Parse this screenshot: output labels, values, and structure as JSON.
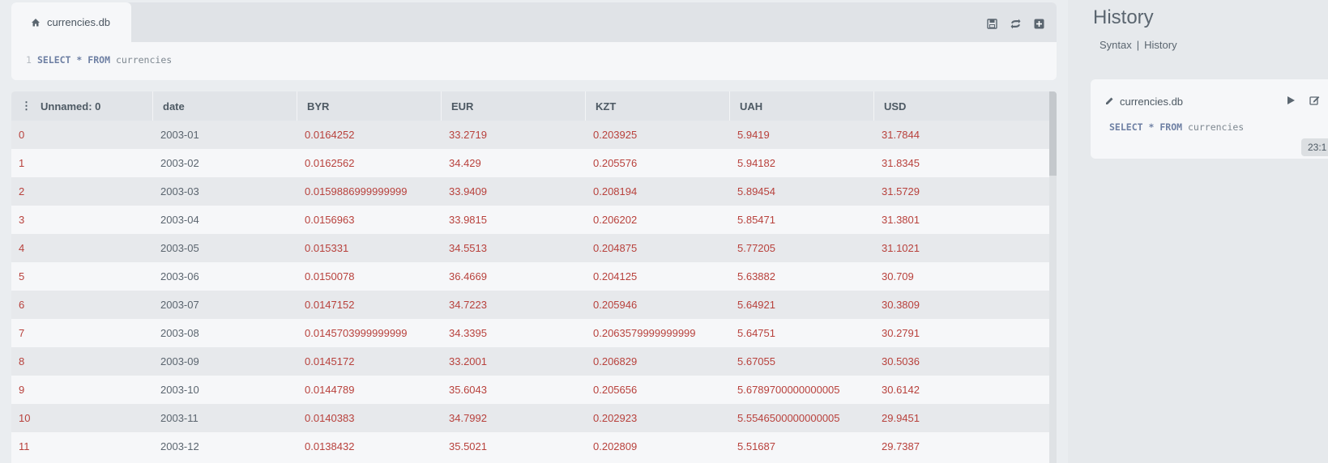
{
  "editor": {
    "tab_label": "currencies.db",
    "line_number": "1",
    "query": {
      "kw1": "SELECT",
      "star": "*",
      "kw2": "FROM",
      "table": "currencies"
    },
    "actions": [
      "save-icon",
      "refresh-icon",
      "add-icon"
    ]
  },
  "table": {
    "columns": [
      "Unnamed: 0",
      "date",
      "BYR",
      "EUR",
      "KZT",
      "UAH",
      "USD"
    ],
    "rows": [
      [
        "0",
        "2003-01",
        "0.0164252",
        "33.2719",
        "0.203925",
        "5.9419",
        "31.7844"
      ],
      [
        "1",
        "2003-02",
        "0.0162562",
        "34.429",
        "0.205576",
        "5.94182",
        "31.8345"
      ],
      [
        "2",
        "2003-03",
        "0.0159886999999999",
        "33.9409",
        "0.208194",
        "5.89454",
        "31.5729"
      ],
      [
        "3",
        "2003-04",
        "0.0156963",
        "33.9815",
        "0.206202",
        "5.85471",
        "31.3801"
      ],
      [
        "4",
        "2003-05",
        "0.015331",
        "34.5513",
        "0.204875",
        "5.77205",
        "31.1021"
      ],
      [
        "5",
        "2003-06",
        "0.0150078",
        "36.4669",
        "0.204125",
        "5.63882",
        "30.709"
      ],
      [
        "6",
        "2003-07",
        "0.0147152",
        "34.7223",
        "0.205946",
        "5.64921",
        "30.3809"
      ],
      [
        "7",
        "2003-08",
        "0.0145703999999999",
        "34.3395",
        "0.2063579999999999",
        "5.64751",
        "30.2791"
      ],
      [
        "8",
        "2003-09",
        "0.0145172",
        "33.2001",
        "0.206829",
        "5.67055",
        "30.5036"
      ],
      [
        "9",
        "2003-10",
        "0.0144789",
        "35.6043",
        "0.205656",
        "5.6789700000000005",
        "30.6142"
      ],
      [
        "10",
        "2003-11",
        "0.0140383",
        "34.7992",
        "0.202923",
        "5.5546500000000005",
        "29.9451"
      ],
      [
        "11",
        "2003-12",
        "0.0138432",
        "35.5021",
        "0.202809",
        "5.51687",
        "29.7387"
      ]
    ]
  },
  "history": {
    "title": "History",
    "tabs": [
      "Syntax",
      "History"
    ],
    "separator": "|",
    "entries": [
      {
        "db": "currencies.db",
        "query": {
          "kw1": "SELECT",
          "star": "*",
          "kw2": "FROM",
          "table": "currencies"
        },
        "time": "23:1"
      }
    ]
  },
  "colors": {
    "value_red": "#b8413c",
    "header_bg": "#e1e4e8",
    "keyword": "#6d7fa3"
  }
}
